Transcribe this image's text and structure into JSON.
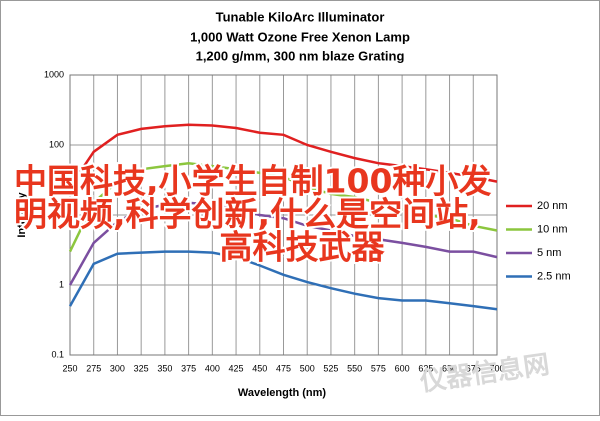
{
  "chart_data": {
    "type": "line",
    "title": "Tunable KiloArc Illuminator",
    "subtitles": [
      "1,000 Watt Ozone Free Xenon Lamp",
      "1,200 g/mm, 300 nm blaze Grating"
    ],
    "x_label": "Wavelength (nm)",
    "y_label": "Intensity",
    "log_y": true,
    "grid": true,
    "legend": "right",
    "x": [
      250,
      275,
      300,
      325,
      350,
      375,
      400,
      425,
      450,
      475,
      500,
      525,
      550,
      575,
      600,
      625,
      650,
      675,
      700
    ],
    "xlim": [
      250,
      700
    ],
    "xticks": [
      250,
      275,
      300,
      325,
      350,
      375,
      400,
      425,
      450,
      475,
      500,
      525,
      550,
      575,
      600,
      625,
      650,
      675,
      700
    ],
    "ylim": [
      0.1,
      1000
    ],
    "yticks": [
      0.1,
      1,
      10,
      100,
      1000
    ],
    "series": [
      {
        "name": "20 nm",
        "color": "#e02020",
        "values": [
          25,
          80,
          140,
          170,
          185,
          195,
          190,
          175,
          150,
          140,
          100,
          80,
          65,
          55,
          50,
          45,
          40,
          35,
          30
        ]
      },
      {
        "name": "10 nm",
        "color": "#8cc63e",
        "values": [
          3,
          15,
          30,
          45,
          50,
          55,
          50,
          45,
          40,
          35,
          25,
          20,
          18,
          15,
          12,
          10,
          9,
          7,
          6
        ]
      },
      {
        "name": "5 nm",
        "color": "#7b4fa0",
        "values": [
          1,
          4,
          8,
          12,
          14,
          15,
          14,
          12,
          10,
          9,
          7,
          6,
          5,
          4.5,
          4,
          3.5,
          3,
          3,
          2.5
        ]
      },
      {
        "name": "2.5 nm",
        "color": "#2f6fb6",
        "values": [
          0.5,
          2,
          2.8,
          2.9,
          3,
          3,
          2.9,
          2.5,
          1.9,
          1.4,
          1.1,
          0.9,
          0.75,
          0.65,
          0.6,
          0.6,
          0.55,
          0.5,
          0.45
        ]
      }
    ],
    "annotations": [
      "中国科技,小学生自制100种小发",
      "明视频,科学创新,什么是空间站,",
      "高科技武器",
      "仪器信息网"
    ]
  }
}
